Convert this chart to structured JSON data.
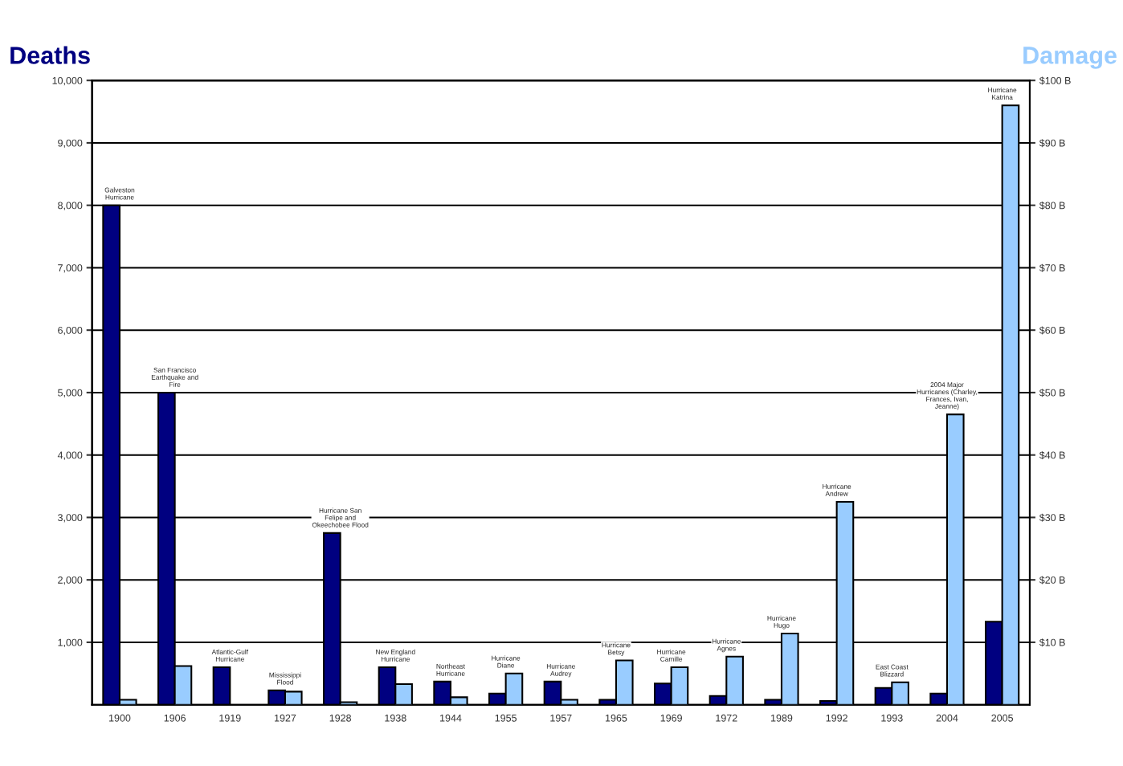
{
  "chart_data": {
    "type": "bar",
    "categories": [
      "1900",
      "1906",
      "1919",
      "1927",
      "1928",
      "1938",
      "1944",
      "1955",
      "1957",
      "1965",
      "1969",
      "1972",
      "1989",
      "1992",
      "1993",
      "2004",
      "2005"
    ],
    "series": [
      {
        "color": "#000080",
        "values": [
          8000,
          5000,
          600,
          230,
          2750,
          600,
          370,
          180,
          370,
          80,
          340,
          140,
          80,
          60,
          270,
          180,
          1330
        ]
      },
      {
        "color": "#99ccff",
        "axis": "y2",
        "values": [
          0.8,
          6.2,
          null,
          2.1,
          0.4,
          3.3,
          1.2,
          5.0,
          0.8,
          7.1,
          6.0,
          7.7,
          11.4,
          32.5,
          3.6,
          46.5,
          96
        ]
      }
    ],
    "ylabel": "Deaths",
    "y2label": "Damage",
    "ylim": [
      0,
      10000
    ],
    "yticks": [
      {
        "value": 1000,
        "label": "1,000"
      },
      {
        "value": 2000,
        "label": "2,000"
      },
      {
        "value": 3000,
        "label": "3,000"
      },
      {
        "value": 4000,
        "label": "4,000"
      },
      {
        "value": 5000,
        "label": "5,000"
      },
      {
        "value": 6000,
        "label": "6,000"
      },
      {
        "value": 7000,
        "label": "7,000"
      },
      {
        "value": 8000,
        "label": "8,000"
      },
      {
        "value": 9000,
        "label": "9,000"
      },
      {
        "value": 10000,
        "label": "10,000"
      }
    ],
    "y2lim": [
      0,
      100
    ],
    "y2ticks": [
      {
        "value": 10,
        "label": "$10 B"
      },
      {
        "value": 20,
        "label": "$20 B"
      },
      {
        "value": 30,
        "label": "$30 B"
      },
      {
        "value": 40,
        "label": "$40 B"
      },
      {
        "value": 50,
        "label": "$50 B"
      },
      {
        "value": 60,
        "label": "$60 B"
      },
      {
        "value": 70,
        "label": "$70 B"
      },
      {
        "value": 80,
        "label": "$80 B"
      },
      {
        "value": 90,
        "label": "$90 B"
      },
      {
        "value": 100,
        "label": "$100 B"
      }
    ],
    "grid": "y",
    "annotations": [
      {
        "text": "Galveston\nHurricane",
        "x": "1900",
        "y": 8000
      },
      {
        "text": "San Francisco\nEarthquake and\nFire",
        "x": "1906",
        "y": 5000
      },
      {
        "text": "Atlantic-Gulf\nHurricane",
        "x": "1919",
        "y": 600
      },
      {
        "text": "Mississippi\nFlood",
        "x": "1927",
        "y": 230
      },
      {
        "text": "Hurricane San\nFelipe and\nOkeechobee Flood",
        "x": "1928",
        "y": 2750
      },
      {
        "text": "New England\nHurricane",
        "x": "1938",
        "y": 600
      },
      {
        "text": "Northeast\nHurricane",
        "x": "1944",
        "y": 370
      },
      {
        "text": "Hurricane\nDiane",
        "x": "1955",
        "y": 500
      },
      {
        "text": "Hurricane\nAudrey",
        "x": "1957",
        "y": 370
      },
      {
        "text": "Hurricane\nBetsy",
        "x": "1965",
        "y": 710
      },
      {
        "text": "Hurricane\nCamille",
        "x": "1969",
        "y": 600
      },
      {
        "text": "Hurricane\nAgnes",
        "x": "1972",
        "y": 770
      },
      {
        "text": "Hurricane\nHugo",
        "x": "1989",
        "y": 1140
      },
      {
        "text": "Hurricane\nAndrew",
        "x": "1992",
        "y": 3250
      },
      {
        "text": "East Coast\nBlizzard",
        "x": "1993",
        "y": 360
      },
      {
        "text": "2004 Major\nHurricanes (Charley,\nFrances, Ivan,\nJeanne)",
        "x": "2004",
        "y": 4650
      },
      {
        "text": "Hurricane\nKatrina",
        "x": "2005",
        "y": 9600
      }
    ]
  }
}
